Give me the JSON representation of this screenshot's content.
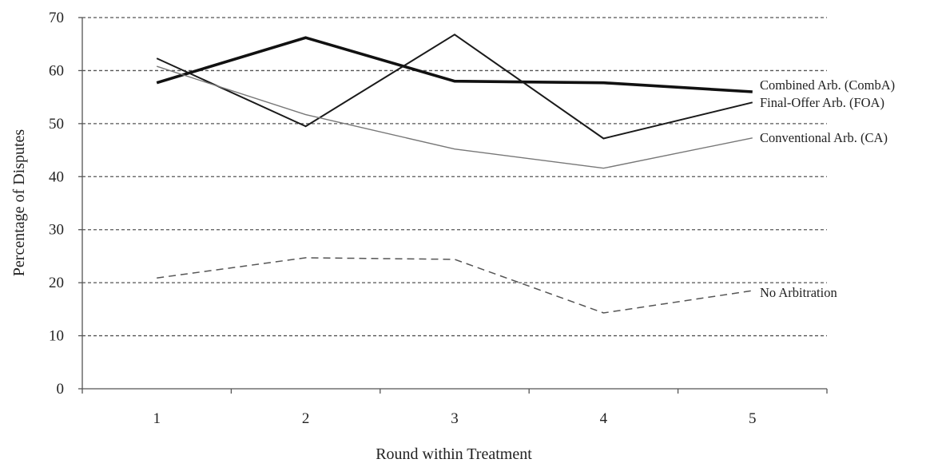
{
  "chart_data": {
    "type": "line",
    "xlabel": "Round within Treatment",
    "ylabel": "Percentage of Disputes",
    "categories": [
      "1",
      "2",
      "3",
      "4",
      "5"
    ],
    "ylim": [
      0,
      70
    ],
    "yticks": [
      0,
      10,
      20,
      30,
      40,
      50,
      60,
      70
    ],
    "grid": true,
    "series": [
      {
        "name": "Combined Arb. (CombA)",
        "values": [
          57.7,
          66.2,
          58.0,
          57.7,
          56.0
        ],
        "color": "#111111",
        "style": "solid-thick"
      },
      {
        "name": "Final-Offer Arb. (FOA)",
        "values": [
          62.3,
          49.5,
          66.8,
          47.2,
          54.0
        ],
        "color": "#1a1a1a",
        "style": "solid"
      },
      {
        "name": "Conventional Arb. (CA)",
        "values": [
          60.8,
          51.7,
          45.2,
          41.6,
          47.3
        ],
        "color": "#777777",
        "style": "solid-thin"
      },
      {
        "name": "No Arbitration",
        "values": [
          20.9,
          24.7,
          24.4,
          14.3,
          18.5
        ],
        "color": "#555555",
        "style": "dashed"
      }
    ]
  }
}
